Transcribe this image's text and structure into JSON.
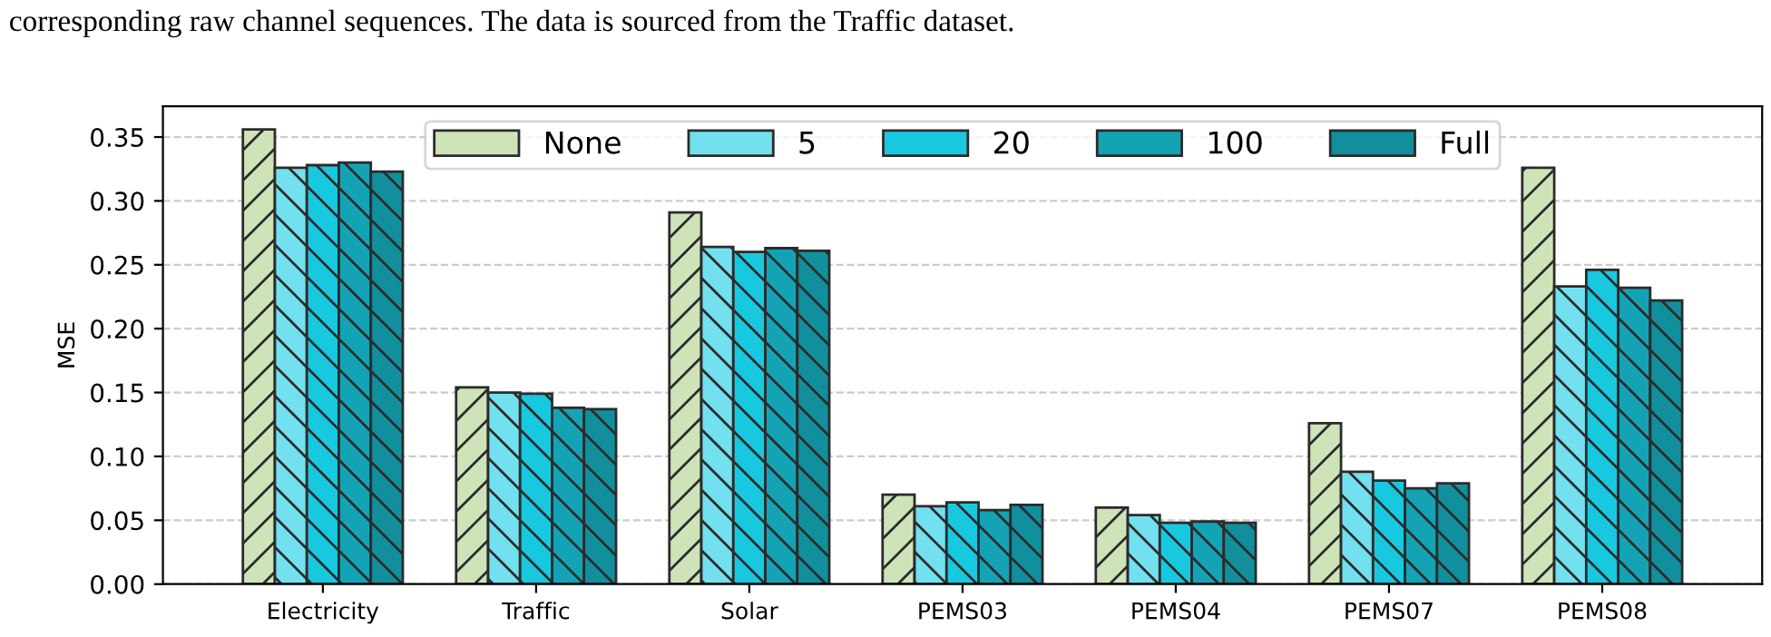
{
  "chart_data": {
    "type": "bar",
    "ylabel": "MSE",
    "annotations": [
      "corresponding raw channel sequences. The data is sourced from the Traffic dataset."
    ],
    "categories": [
      "Electricity",
      "Traffic",
      "Solar",
      "PEMS03",
      "PEMS04",
      "PEMS07",
      "PEMS08"
    ],
    "series": [
      {
        "name": "None",
        "color": "#cfe3b8",
        "values": [
          0.356,
          0.154,
          0.291,
          0.07,
          0.06,
          0.126,
          0.326
        ]
      },
      {
        "name": "5",
        "color": "#72e0ee",
        "values": [
          0.326,
          0.15,
          0.264,
          0.061,
          0.054,
          0.088,
          0.233
        ]
      },
      {
        "name": "20",
        "color": "#18c8df",
        "values": [
          0.328,
          0.149,
          0.26,
          0.064,
          0.048,
          0.081,
          0.246
        ]
      },
      {
        "name": "100",
        "color": "#13a3b5",
        "values": [
          0.33,
          0.138,
          0.263,
          0.058,
          0.049,
          0.075,
          0.232
        ]
      },
      {
        "name": "Full",
        "color": "#118f9c",
        "values": [
          0.323,
          0.137,
          0.261,
          0.062,
          0.048,
          0.079,
          0.222
        ]
      }
    ],
    "ylim": [
      0,
      0.374
    ],
    "yticks": [
      {
        "value": 0,
        "label": "0.00"
      },
      {
        "value": 0.05,
        "label": "0.05"
      },
      {
        "value": 0.1,
        "label": "0.10"
      },
      {
        "value": 0.15,
        "label": "0.15"
      },
      {
        "value": 0.2,
        "label": "0.20"
      },
      {
        "value": 0.25,
        "label": "0.25"
      },
      {
        "value": 0.3,
        "label": "0.30"
      },
      {
        "value": 0.35,
        "label": "0.35"
      }
    ],
    "grid": "y",
    "legend": "top"
  }
}
